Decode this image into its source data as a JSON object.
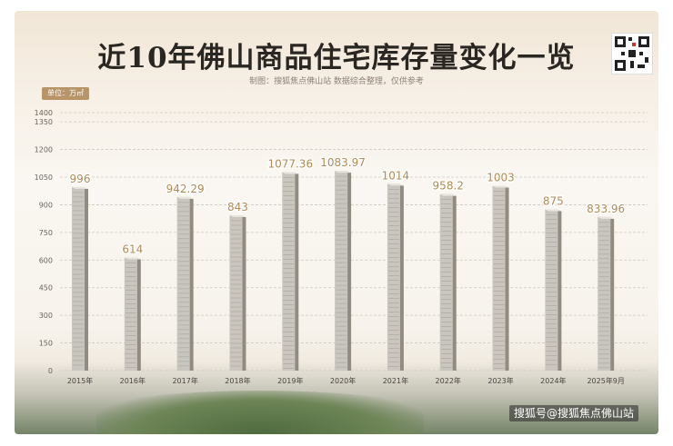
{
  "header": {
    "title": "近10年佛山商品住宅库存量变化一览",
    "subtitle": "制图：搜狐焦点佛山站 数据综合整理，仅供参考",
    "unit_label": "单位：万㎡"
  },
  "watermark": "搜狐号@搜狐焦点佛山站",
  "colors": {
    "bar_front": "#c9c6bf",
    "bar_side": "#918b82",
    "label": "#b08a55",
    "grid": "#cfc8be"
  },
  "chart_data": {
    "type": "bar",
    "categories": [
      "2015年",
      "2016年",
      "2017年",
      "2018年",
      "2019年",
      "2020年",
      "2021年",
      "2022年",
      "2023年",
      "2024年",
      "2025年9月"
    ],
    "values": [
      996,
      614,
      942.29,
      843,
      1077.36,
      1083.97,
      1014,
      958.2,
      1003,
      875,
      833.96
    ],
    "value_labels": [
      "996",
      "614",
      "942.29",
      "843",
      "1077.36",
      "1083.97",
      "1014",
      "958.2",
      "1003",
      "875",
      "833.96"
    ],
    "yticks": [
      0,
      150,
      300,
      450,
      600,
      750,
      900,
      1050,
      1200,
      1350,
      1400
    ],
    "ytick_labels": [
      "0",
      "150",
      "300",
      "450",
      "600",
      "750",
      "900",
      "1050",
      "1200",
      "1350",
      "1400"
    ],
    "ylim": [
      0,
      1400
    ],
    "grid": true,
    "legend": "none"
  }
}
